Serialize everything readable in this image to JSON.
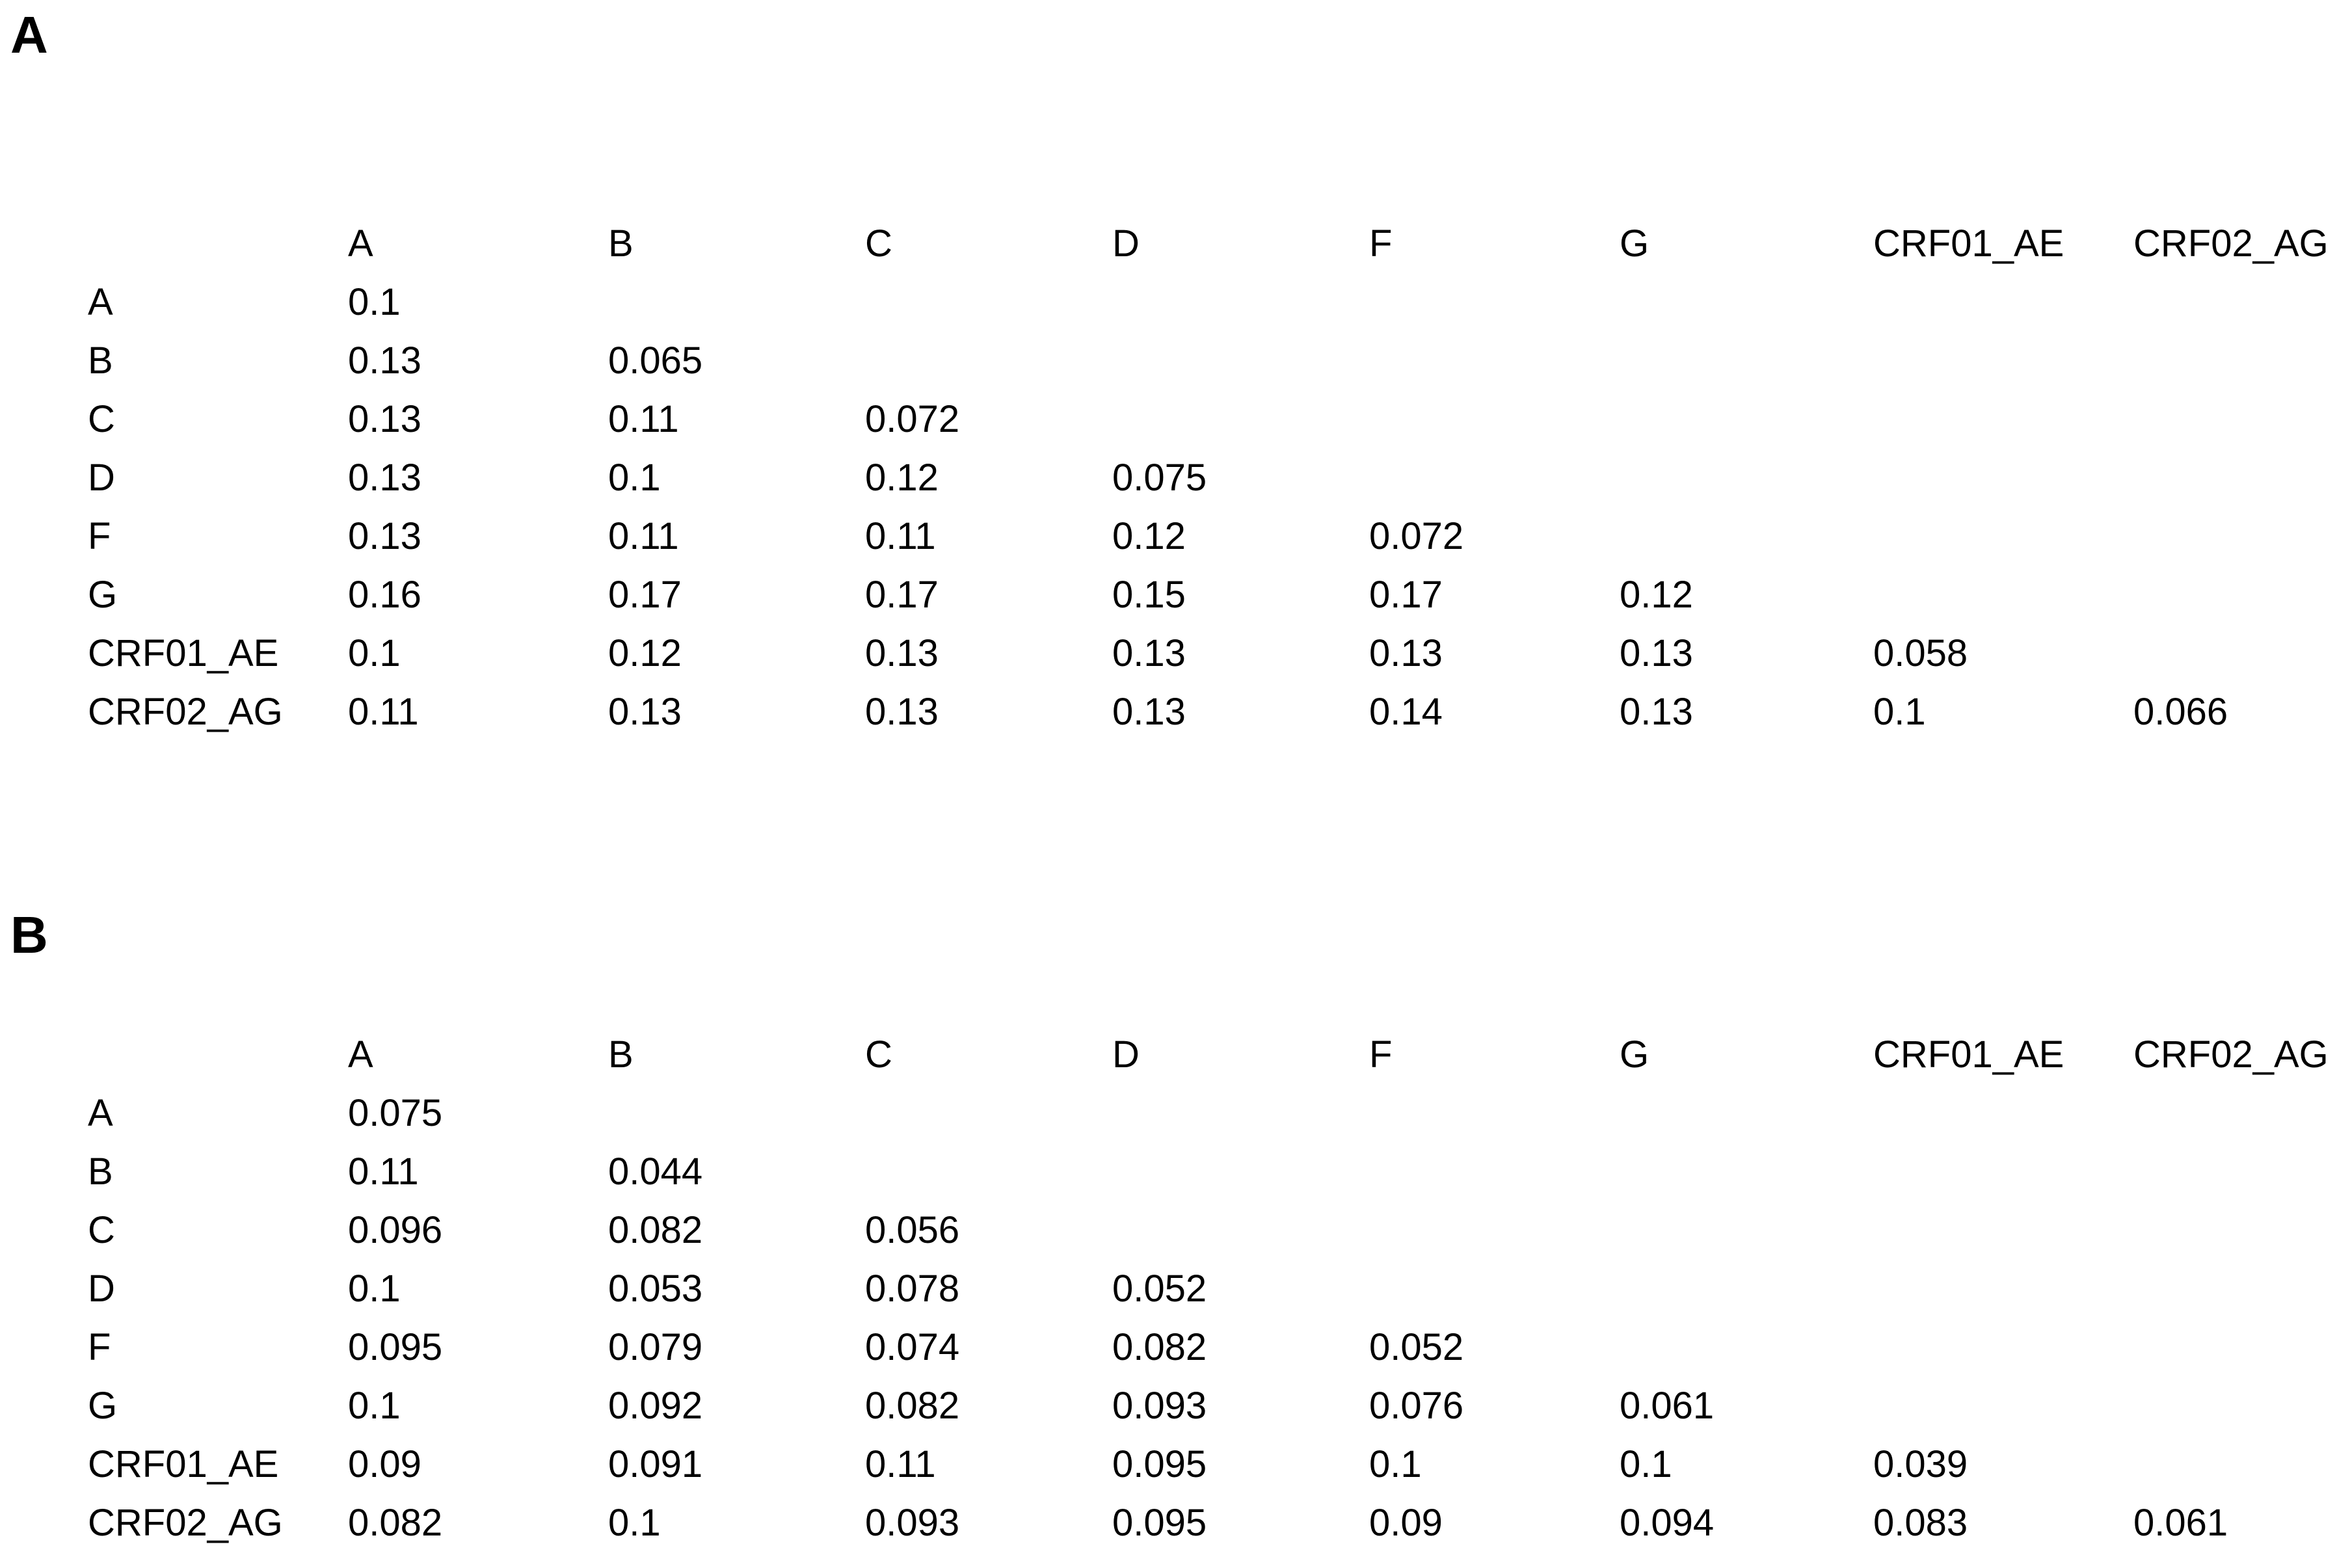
{
  "page": {
    "background_color": "#ffffff",
    "text_color": "#000000"
  },
  "panels": [
    {
      "label": "A",
      "matrix": {
        "col_headers": [
          "A",
          "B",
          "C",
          "D",
          "F",
          "G",
          "CRF01_AE",
          "CRF02_AG"
        ],
        "rows": [
          {
            "label": "A",
            "values": [
              "0.1"
            ]
          },
          {
            "label": "B",
            "values": [
              "0.13",
              "0.065"
            ]
          },
          {
            "label": "C",
            "values": [
              "0.13",
              "0.11",
              "0.072"
            ]
          },
          {
            "label": "D",
            "values": [
              "0.13",
              "0.1",
              "0.12",
              "0.075"
            ]
          },
          {
            "label": "F",
            "values": [
              "0.13",
              "0.11",
              "0.11",
              "0.12",
              "0.072"
            ]
          },
          {
            "label": "G",
            "values": [
              "0.16",
              "0.17",
              "0.17",
              "0.15",
              "0.17",
              "0.12"
            ]
          },
          {
            "label": "CRF01_AE",
            "values": [
              "0.1",
              "0.12",
              "0.13",
              "0.13",
              "0.13",
              "0.13",
              "0.058"
            ]
          },
          {
            "label": "CRF02_AG",
            "values": [
              "0.11",
              "0.13",
              "0.13",
              "0.13",
              "0.14",
              "0.13",
              "0.1",
              "0.066"
            ]
          }
        ]
      }
    },
    {
      "label": "B",
      "matrix": {
        "col_headers": [
          "A",
          "B",
          "C",
          "D",
          "F",
          "G",
          "CRF01_AE",
          "CRF02_AG"
        ],
        "rows": [
          {
            "label": "A",
            "values": [
              "0.075"
            ]
          },
          {
            "label": "B",
            "values": [
              "0.11",
              "0.044"
            ]
          },
          {
            "label": "C",
            "values": [
              "0.096",
              "0.082",
              "0.056"
            ]
          },
          {
            "label": "D",
            "values": [
              "0.1",
              "0.053",
              "0.078",
              "0.052"
            ]
          },
          {
            "label": "F",
            "values": [
              "0.095",
              "0.079",
              "0.074",
              "0.082",
              "0.052"
            ]
          },
          {
            "label": "G",
            "values": [
              "0.1",
              "0.092",
              "0.082",
              "0.093",
              "0.076",
              "0.061"
            ]
          },
          {
            "label": "CRF01_AE",
            "values": [
              "0.09",
              "0.091",
              "0.11",
              "0.095",
              "0.1",
              "0.1",
              "0.039"
            ]
          },
          {
            "label": "CRF02_AG",
            "values": [
              "0.082",
              "0.1",
              "0.093",
              "0.095",
              "0.09",
              "0.094",
              "0.083",
              "0.061"
            ]
          }
        ]
      }
    }
  ],
  "chart_data": [
    {
      "type": "table",
      "title": "A",
      "categories": [
        "A",
        "B",
        "C",
        "D",
        "F",
        "G",
        "CRF01_AE",
        "CRF02_AG"
      ],
      "series": [
        {
          "name": "A",
          "values": [
            0.1
          ]
        },
        {
          "name": "B",
          "values": [
            0.13,
            0.065
          ]
        },
        {
          "name": "C",
          "values": [
            0.13,
            0.11,
            0.072
          ]
        },
        {
          "name": "D",
          "values": [
            0.13,
            0.1,
            0.12,
            0.075
          ]
        },
        {
          "name": "F",
          "values": [
            0.13,
            0.11,
            0.11,
            0.12,
            0.072
          ]
        },
        {
          "name": "G",
          "values": [
            0.16,
            0.17,
            0.17,
            0.15,
            0.17,
            0.12
          ]
        },
        {
          "name": "CRF01_AE",
          "values": [
            0.1,
            0.12,
            0.13,
            0.13,
            0.13,
            0.13,
            0.058
          ]
        },
        {
          "name": "CRF02_AG",
          "values": [
            0.11,
            0.13,
            0.13,
            0.13,
            0.14,
            0.13,
            0.1,
            0.066
          ]
        }
      ]
    },
    {
      "type": "table",
      "title": "B",
      "categories": [
        "A",
        "B",
        "C",
        "D",
        "F",
        "G",
        "CRF01_AE",
        "CRF02_AG"
      ],
      "series": [
        {
          "name": "A",
          "values": [
            0.075
          ]
        },
        {
          "name": "B",
          "values": [
            0.11,
            0.044
          ]
        },
        {
          "name": "C",
          "values": [
            0.096,
            0.082,
            0.056
          ]
        },
        {
          "name": "D",
          "values": [
            0.1,
            0.053,
            0.078,
            0.052
          ]
        },
        {
          "name": "F",
          "values": [
            0.095,
            0.079,
            0.074,
            0.082,
            0.052
          ]
        },
        {
          "name": "G",
          "values": [
            0.1,
            0.092,
            0.082,
            0.093,
            0.076,
            0.061
          ]
        },
        {
          "name": "CRF01_AE",
          "values": [
            0.09,
            0.091,
            0.11,
            0.095,
            0.1,
            0.1,
            0.039
          ]
        },
        {
          "name": "CRF02_AG",
          "values": [
            0.082,
            0.1,
            0.093,
            0.095,
            0.09,
            0.094,
            0.083,
            0.061
          ]
        }
      ]
    }
  ]
}
